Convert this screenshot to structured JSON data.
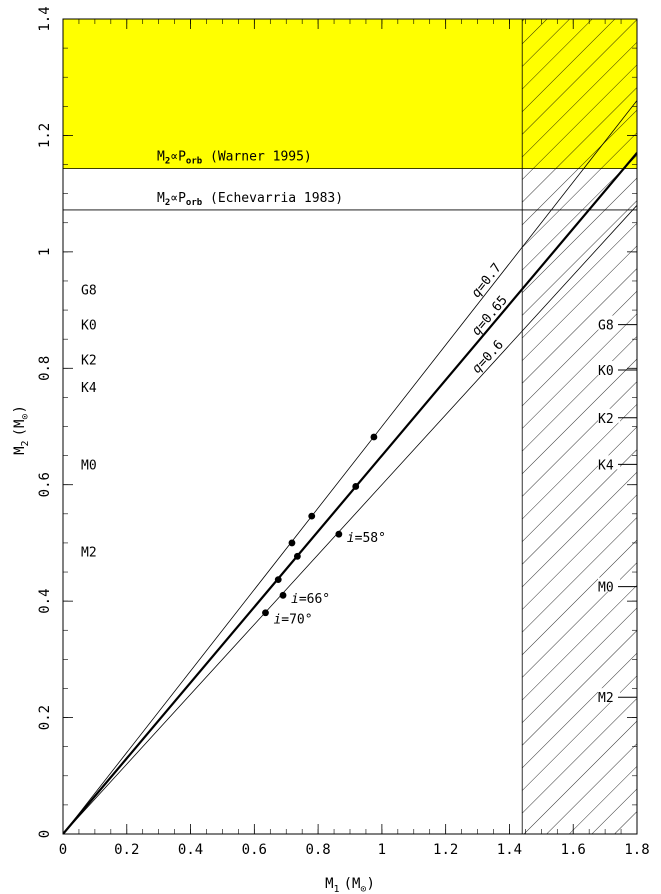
{
  "chart_data": {
    "type": "scatter",
    "xlabel": {
      "base": "M",
      "sub": "1",
      "units": "(M",
      "units_sub": "⊙",
      "units_close": ")"
    },
    "ylabel": {
      "base": "M",
      "sub": "2",
      "units": "(M",
      "units_sub": "⊙",
      "units_close": ")"
    },
    "xlim": [
      0,
      1.8
    ],
    "ylim": [
      0,
      1.4
    ],
    "x_ticks": [
      0,
      0.2,
      0.4,
      0.6,
      0.8,
      1,
      1.2,
      1.4,
      1.6,
      1.8
    ],
    "x_tick_labels": [
      "0",
      "0.2",
      "0.4",
      "0.6",
      "0.8",
      "1",
      "1.2",
      "1.4",
      "1.6",
      "1.8"
    ],
    "y_ticks": [
      0,
      0.2,
      0.4,
      0.6,
      0.8,
      1,
      1.2,
      1.4
    ],
    "y_tick_labels": [
      "0",
      "0.2",
      "0.4",
      "0.6",
      "0.8",
      "1",
      "1.2",
      "1.4"
    ],
    "colors": {
      "highlight": "#ffff00",
      "line": "#000000",
      "background": "#ffffff"
    },
    "regions": {
      "yellow_band_y": [
        1.143,
        1.4
      ],
      "hatched_x": [
        1.44,
        1.8
      ]
    },
    "hlines": [
      {
        "y": 1.143,
        "label_pre": "M",
        "label_sub1": "2",
        "label_mid": "∝P",
        "label_sub2": "orb",
        "label_post": " (Warner 1995)"
      },
      {
        "y": 1.072,
        "label_pre": "M",
        "label_sub1": "2",
        "label_mid": "∝P",
        "label_sub2": "orb",
        "label_post": " (Echevarria 1983)"
      }
    ],
    "q_lines": [
      {
        "q": 0.7,
        "label_q": "q",
        "label_val": "=0.7",
        "bold": false
      },
      {
        "q": 0.65,
        "label_q": "q",
        "label_val": "=0.65",
        "bold": true
      },
      {
        "q": 0.6,
        "label_q": "q",
        "label_val": "=0.6",
        "bold": false
      }
    ],
    "points": [
      {
        "x": 0.635,
        "y": 0.38
      },
      {
        "x": 0.69,
        "y": 0.41
      },
      {
        "x": 0.675,
        "y": 0.437
      },
      {
        "x": 0.735,
        "y": 0.477
      },
      {
        "x": 0.718,
        "y": 0.5
      },
      {
        "x": 0.78,
        "y": 0.546
      },
      {
        "x": 0.865,
        "y": 0.515
      },
      {
        "x": 0.918,
        "y": 0.597
      },
      {
        "x": 0.975,
        "y": 0.682
      }
    ],
    "inclination_labels": [
      {
        "sym": "i",
        "val": "=70°",
        "x": 0.66,
        "y": 0.37
      },
      {
        "sym": "i",
        "val": "=66°",
        "x": 0.715,
        "y": 0.405
      },
      {
        "sym": "i",
        "val": "=58°",
        "x": 0.89,
        "y": 0.51
      }
    ],
    "spectral_left": [
      {
        "label": "G8",
        "y": 0.935
      },
      {
        "label": "K0",
        "y": 0.875
      },
      {
        "label": "K2",
        "y": 0.815
      },
      {
        "label": "K4",
        "y": 0.768
      },
      {
        "label": "M0",
        "y": 0.635
      },
      {
        "label": "M2",
        "y": 0.485
      }
    ],
    "spectral_right": [
      {
        "label": "G8",
        "y": 0.875
      },
      {
        "label": "K0",
        "y": 0.797
      },
      {
        "label": "K2",
        "y": 0.715
      },
      {
        "label": "K4",
        "y": 0.635
      },
      {
        "label": "M0",
        "y": 0.425
      },
      {
        "label": "M2",
        "y": 0.235
      }
    ]
  }
}
